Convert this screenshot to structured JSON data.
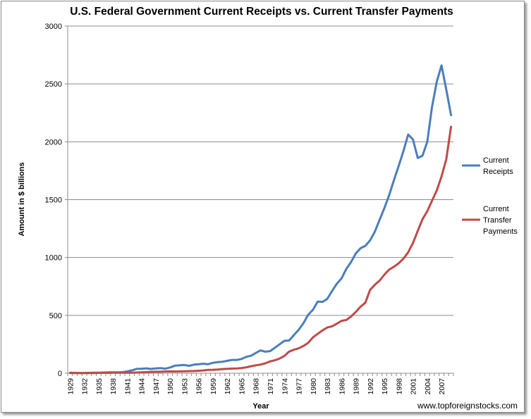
{
  "chart_data": {
    "type": "line",
    "title": "U.S. Federal Government Current Receipts vs. Current Transfer Payments",
    "xlabel": "Year",
    "ylabel": "Amount in $ billions",
    "ylim": [
      0,
      3000
    ],
    "yticks": [
      0,
      500,
      1000,
      1500,
      2000,
      2500,
      3000
    ],
    "grid": "horizontal",
    "legend_position": "right",
    "x": [
      1929,
      1930,
      1931,
      1932,
      1933,
      1934,
      1935,
      1936,
      1937,
      1938,
      1939,
      1940,
      1941,
      1942,
      1943,
      1944,
      1945,
      1946,
      1947,
      1948,
      1949,
      1950,
      1951,
      1952,
      1953,
      1954,
      1955,
      1956,
      1957,
      1958,
      1959,
      1960,
      1961,
      1962,
      1963,
      1964,
      1965,
      1966,
      1967,
      1968,
      1969,
      1970,
      1971,
      1972,
      1973,
      1974,
      1975,
      1976,
      1977,
      1978,
      1979,
      1980,
      1981,
      1982,
      1983,
      1984,
      1985,
      1986,
      1987,
      1988,
      1989,
      1990,
      1991,
      1992,
      1993,
      1994,
      1995,
      1996,
      1997,
      1998,
      1999,
      2000,
      2001,
      2002,
      2003,
      2004,
      2005,
      2006,
      2007,
      2008,
      2009
    ],
    "x_tick_labels": [
      "1929",
      "1932",
      "1935",
      "1938",
      "1941",
      "1944",
      "1947",
      "1950",
      "1953",
      "1956",
      "1959",
      "1962",
      "1965",
      "1968",
      "1971",
      "1974",
      "1977",
      "1980",
      "1983",
      "1986",
      "1989",
      "1992",
      "1995",
      "1998",
      "2001",
      "2004",
      "2007"
    ],
    "series": [
      {
        "name": "Current Receipts",
        "color": "#4a7ebb",
        "values": [
          4,
          3,
          2,
          2,
          3,
          4,
          5,
          6,
          8,
          7,
          7,
          9,
          16,
          25,
          38,
          39,
          42,
          37,
          42,
          44,
          39,
          50,
          65,
          68,
          71,
          64,
          74,
          78,
          82,
          78,
          90,
          96,
          99,
          107,
          115,
          115,
          123,
          142,
          151,
          175,
          197,
          186,
          191,
          220,
          250,
          280,
          283,
          330,
          375,
          432,
          505,
          548,
          619,
          616,
          642,
          709,
          772,
          819,
          902,
          960,
          1036,
          1080,
          1101,
          1148,
          1224,
          1326,
          1427,
          1538,
          1668,
          1790,
          1919,
          2062,
          2020,
          1860,
          1880,
          2000,
          2300,
          2520,
          2660,
          2450,
          2230
        ]
      },
      {
        "name": "Current Transfer Payments",
        "color": "#be4b48",
        "values": [
          1,
          1,
          2,
          2,
          2,
          2,
          3,
          4,
          3,
          4,
          4,
          5,
          5,
          5,
          6,
          8,
          10,
          12,
          13,
          13,
          15,
          16,
          15,
          16,
          17,
          18,
          19,
          21,
          24,
          29,
          30,
          32,
          36,
          38,
          40,
          41,
          45,
          51,
          60,
          68,
          75,
          86,
          102,
          112,
          127,
          150,
          187,
          203,
          215,
          236,
          262,
          310,
          340,
          370,
          395,
          405,
          428,
          453,
          460,
          490,
          530,
          575,
          610,
          720,
          765,
          800,
          852,
          895,
          920,
          950,
          990,
          1045,
          1125,
          1230,
          1330,
          1400,
          1490,
          1580,
          1700,
          1850,
          2130
        ]
      }
    ]
  },
  "watermark": "www.topforeignstocks.com"
}
